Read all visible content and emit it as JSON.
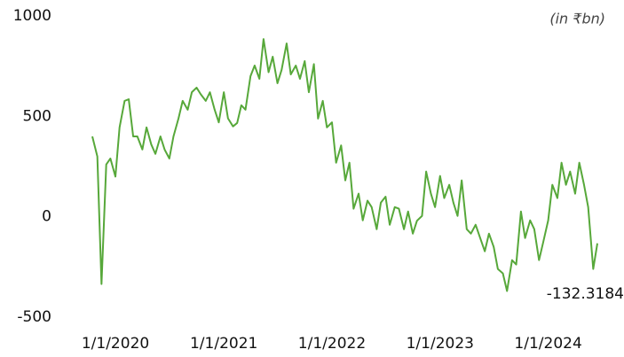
{
  "chart_data": {
    "type": "line",
    "unit_note": "(in ₹bn)",
    "color": "#57a83a",
    "x": [
      "2019-10-15",
      "2019-11-01",
      "2019-11-15",
      "2019-12-01",
      "2019-12-15",
      "2020-01-01",
      "2020-01-15",
      "2020-02-01",
      "2020-02-15",
      "2020-03-01",
      "2020-03-15",
      "2020-04-01",
      "2020-04-15",
      "2020-05-01",
      "2020-05-15",
      "2020-06-01",
      "2020-06-15",
      "2020-07-01",
      "2020-07-15",
      "2020-08-01",
      "2020-08-15",
      "2020-09-01",
      "2020-09-15",
      "2020-10-01",
      "2020-10-15",
      "2020-11-01",
      "2020-11-15",
      "2020-12-01",
      "2020-12-15",
      "2021-01-01",
      "2021-01-15",
      "2021-02-01",
      "2021-02-15",
      "2021-03-01",
      "2021-03-15",
      "2021-04-01",
      "2021-04-15",
      "2021-05-01",
      "2021-05-15",
      "2021-06-01",
      "2021-06-15",
      "2021-07-01",
      "2021-07-15",
      "2021-08-01",
      "2021-08-15",
      "2021-09-01",
      "2021-09-15",
      "2021-10-01",
      "2021-10-15",
      "2021-11-01",
      "2021-11-15",
      "2021-12-01",
      "2021-12-15",
      "2022-01-01",
      "2022-01-15",
      "2022-02-01",
      "2022-02-15",
      "2022-03-01",
      "2022-03-15",
      "2022-04-01",
      "2022-04-15",
      "2022-05-01",
      "2022-05-15",
      "2022-06-01",
      "2022-06-15",
      "2022-07-01",
      "2022-07-15",
      "2022-08-01",
      "2022-08-15",
      "2022-09-01",
      "2022-09-15",
      "2022-10-01",
      "2022-10-15",
      "2022-11-01",
      "2022-11-15",
      "2022-12-01",
      "2022-12-15",
      "2023-01-01",
      "2023-01-15",
      "2023-02-01",
      "2023-02-15",
      "2023-03-01",
      "2023-03-15",
      "2023-04-01",
      "2023-04-15",
      "2023-05-01",
      "2023-05-15",
      "2023-06-01",
      "2023-06-15",
      "2023-07-01",
      "2023-07-15",
      "2023-08-01",
      "2023-08-15",
      "2023-09-01",
      "2023-09-15",
      "2023-10-01",
      "2023-10-15",
      "2023-11-01",
      "2023-11-15",
      "2023-12-01",
      "2023-12-15",
      "2024-01-01",
      "2024-01-15",
      "2024-02-01",
      "2024-02-15",
      "2024-03-01",
      "2024-03-15",
      "2024-04-01",
      "2024-04-15",
      "2024-05-01",
      "2024-05-15",
      "2024-06-01",
      "2024-06-15"
    ],
    "values": [
      400,
      300,
      -335,
      260,
      290,
      200,
      445,
      577,
      585,
      400,
      400,
      335,
      445,
      360,
      313,
      400,
      335,
      290,
      400,
      490,
      577,
      533,
      620,
      643,
      610,
      577,
      620,
      533,
      470,
      620,
      490,
      450,
      467,
      555,
      533,
      700,
      753,
      687,
      885,
      720,
      797,
      665,
      731,
      863,
      709,
      753,
      687,
      775,
      620,
      760,
      489,
      577,
      445,
      470,
      269,
      355,
      181,
      269,
      40,
      115,
      -18,
      80,
      48,
      -62,
      70,
      100,
      -40,
      48,
      40,
      -62,
      26,
      -84,
      -20,
      4,
      225,
      115,
      48,
      203,
      93,
      159,
      70,
      4,
      181,
      -62,
      -84,
      -40,
      -100,
      -172,
      -84,
      -150,
      -260,
      -282,
      -370,
      -216,
      -238,
      26,
      -106,
      -18,
      -62,
      -216,
      -128,
      -18,
      159,
      93,
      269,
      159,
      225,
      115,
      269,
      159,
      48,
      -260,
      -132.3184
    ],
    "xlim": [
      "2019-10-15",
      "2024-06-15"
    ],
    "xticks": [
      {
        "value": "2020-01-01",
        "label": "1/1/2020"
      },
      {
        "value": "2021-01-01",
        "label": "1/1/2021"
      },
      {
        "value": "2022-01-01",
        "label": "1/1/2022"
      },
      {
        "value": "2023-01-01",
        "label": "1/1/2023"
      },
      {
        "value": "2024-01-01",
        "label": "1/1/2024"
      }
    ],
    "ylim": [
      -500,
      1000
    ],
    "yticks": [
      -500,
      0,
      500,
      1000
    ],
    "grid": false
  }
}
